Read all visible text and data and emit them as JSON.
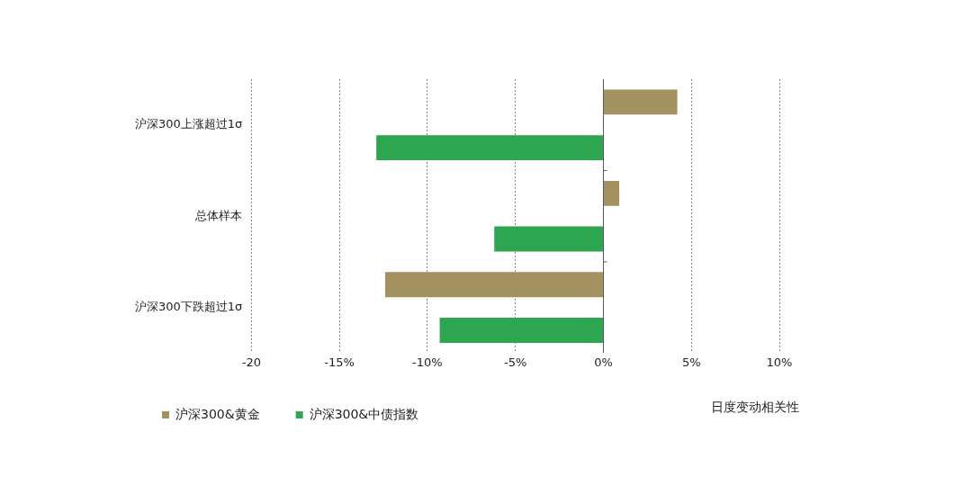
{
  "chart_data": {
    "type": "bar",
    "orientation": "horizontal",
    "xlabel": "日度变动相关性",
    "categories": [
      "沪深300上涨超过1σ",
      "总体样本",
      "沪深300下跌超过1σ"
    ],
    "series": [
      {
        "name": "沪深300&黄金",
        "color": "#a39162",
        "values": [
          4.2,
          0.9,
          -12.4
        ]
      },
      {
        "name": "沪深300&中债指数",
        "color": "#2ea551",
        "values": [
          -12.9,
          -6.2,
          -9.3
        ]
      }
    ],
    "xlim": [
      -20,
      10
    ],
    "xticks": [
      -20,
      {
        "value": -15,
        "label": "-15%"
      },
      {
        "value": -10,
        "label": "-10%"
      },
      {
        "value": -5,
        "label": "-5%"
      },
      {
        "value": 0,
        "label": "0%"
      },
      {
        "value": 5,
        "label": "5%"
      },
      {
        "value": 10,
        "label": "10%"
      }
    ],
    "grid": "x",
    "legend": "bottom"
  }
}
